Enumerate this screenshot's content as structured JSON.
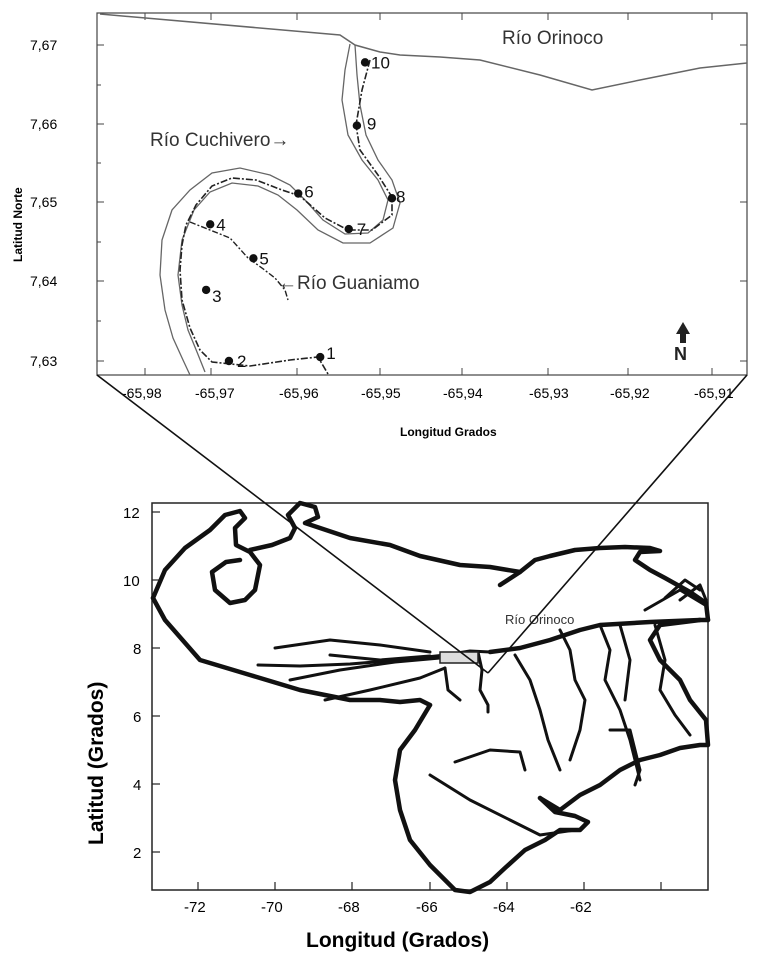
{
  "inset_map": {
    "x_axis_label": "Longitud Grados",
    "y_axis_label": "Latitud Norte",
    "x_tick_labels": [
      "-65,98",
      "-65,97",
      "-65,96",
      "-65,95",
      "-65,94",
      "-65,93",
      "-65,92",
      "-65,91"
    ],
    "y_tick_labels": [
      "7,63",
      "7,64",
      "7,65",
      "7,66",
      "7,67"
    ],
    "river_labels": {
      "orinoco": "Río Orinoco",
      "cuchivero": "Río Cuchivero→",
      "guaniamo": "←Río Guaniamo"
    },
    "sampling_sites": [
      {
        "label": "1",
        "lon": -65.9585,
        "lat": 7.6305
      },
      {
        "label": "2",
        "lon": -65.9697,
        "lat": 7.63
      },
      {
        "label": "3",
        "lon": -65.9725,
        "lat": 7.639
      },
      {
        "label": "4",
        "lon": -65.972,
        "lat": 7.6473
      },
      {
        "label": "5",
        "lon": -65.9667,
        "lat": 7.643
      },
      {
        "label": "6",
        "lon": -65.9612,
        "lat": 7.6512
      },
      {
        "label": "7",
        "lon": -65.955,
        "lat": 7.6467
      },
      {
        "label": "8",
        "lon": -65.9497,
        "lat": 7.6506
      },
      {
        "label": "9",
        "lon": -65.954,
        "lat": 7.6598
      },
      {
        "label": "10",
        "lon": -65.953,
        "lat": 7.6678
      }
    ],
    "north_arrow": "N"
  },
  "venezuela_map": {
    "x_axis_label": "Longitud (Grados)",
    "y_axis_label": "Latitud (Grados)",
    "x_tick_labels": [
      "-72",
      "-70",
      "-68",
      "-66",
      "-64",
      "-62"
    ],
    "y_tick_labels": [
      "2",
      "4",
      "6",
      "8",
      "10",
      "12"
    ],
    "river_label": "Río Orinoco"
  }
}
